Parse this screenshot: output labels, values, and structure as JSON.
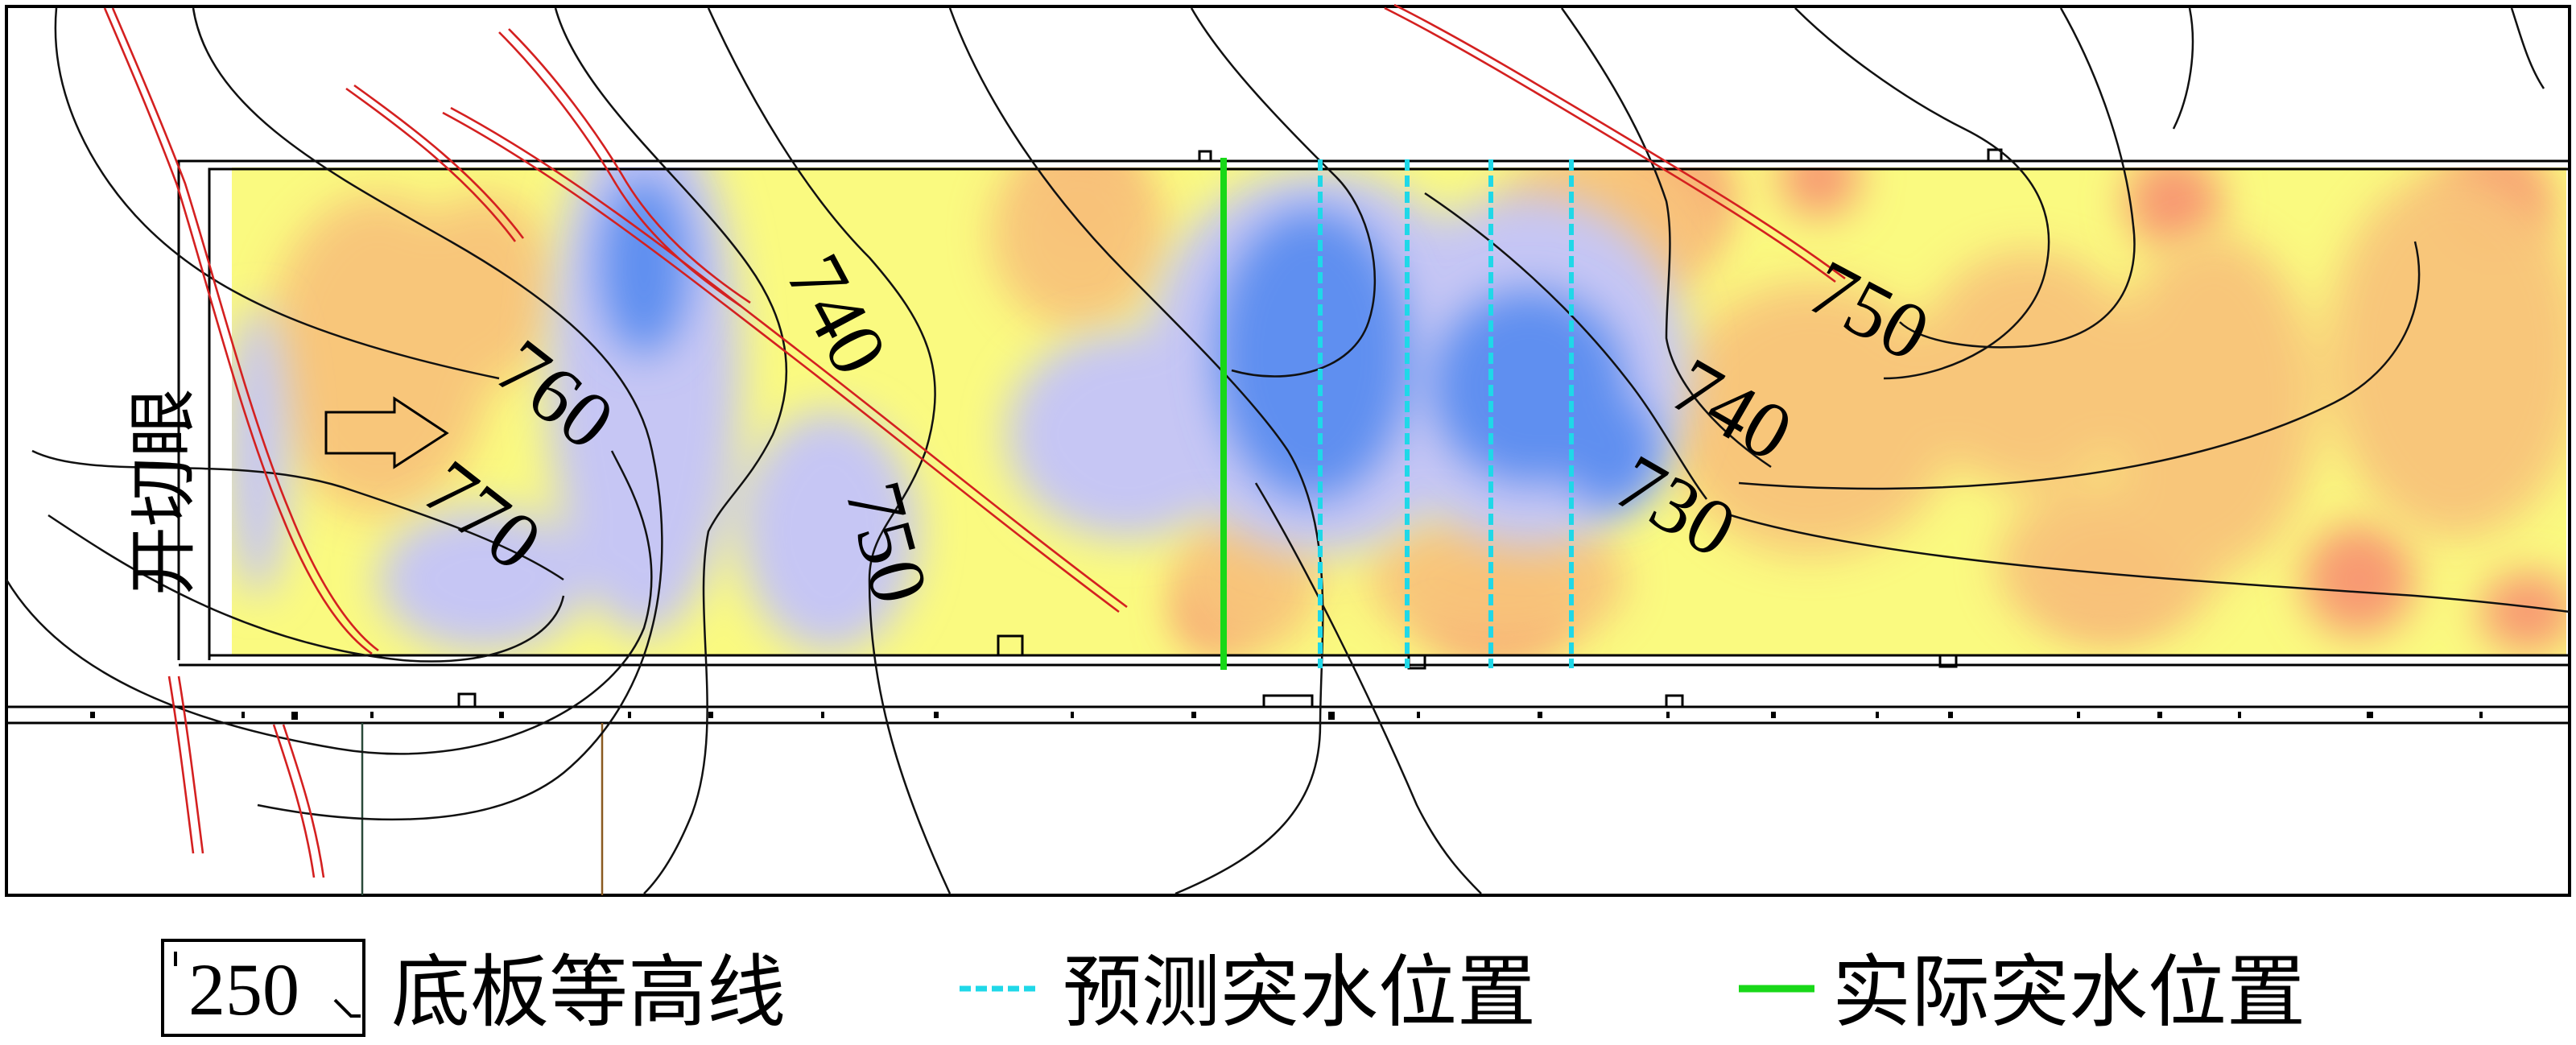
{
  "side_label": "开切眼",
  "contour_labels": [
    "770",
    "760",
    "750",
    "740",
    "740",
    "750",
    "730"
  ],
  "legend": {
    "contour_sample": "250",
    "contour_label": "底板等高线",
    "predicted_label": "预测突水位置",
    "actual_label": "实际突水位置"
  },
  "colors": {
    "predicted_line": "#1fd8e8",
    "actual_line": "#18d818",
    "fault": "#d42020",
    "contour": "#111111",
    "very_low": "#5f8ff0",
    "low": "#c6c6f4",
    "mid": "#fafa80",
    "high": "#f8c47a",
    "very_high": "#f89a72"
  }
}
